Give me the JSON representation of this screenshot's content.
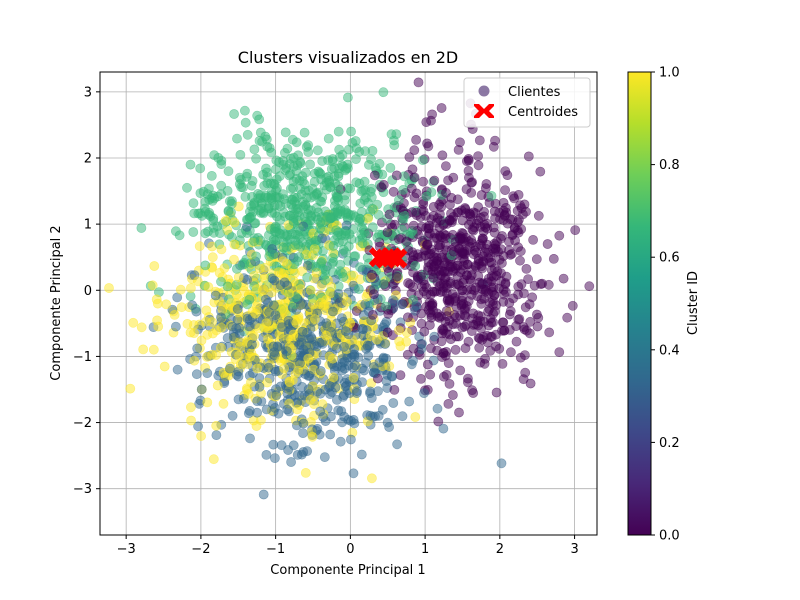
{
  "chart_data": {
    "type": "scatter",
    "title": "Clusters visualizados en 2D",
    "xlabel": "Componente Principal 1",
    "ylabel": "Componente Principal 2",
    "xlim": [
      -3.35,
      3.3
    ],
    "ylim": [
      -3.7,
      3.3
    ],
    "xticks": [
      -3,
      -2,
      -1,
      0,
      1,
      2,
      3
    ],
    "yticks": [
      -3,
      -2,
      -1,
      0,
      1,
      2,
      3
    ],
    "xtick_labels": [
      "−3",
      "−2",
      "−1",
      "0",
      "1",
      "2",
      "3"
    ],
    "ytick_labels": [
      "−3",
      "−2",
      "−1",
      "0",
      "1",
      "2",
      "3"
    ],
    "grid": true,
    "legend": {
      "position": "upper-right",
      "entries": [
        {
          "label": "Clientes",
          "marker": "circle",
          "color": "#5b3f7e"
        },
        {
          "label": "Centroides",
          "marker": "x",
          "color": "#ff0000"
        }
      ]
    },
    "colorbar": {
      "label": "Cluster ID",
      "range": [
        0.0,
        1.0
      ],
      "ticks": [
        0.0,
        0.2,
        0.4,
        0.6,
        0.8,
        1.0
      ],
      "tick_labels": [
        "0.0",
        "0.2",
        "0.4",
        "0.6",
        "0.8",
        "1.0"
      ],
      "colormap": [
        "#440154",
        "#482878",
        "#3e4989",
        "#31688e",
        "#26828e",
        "#1f9e89",
        "#35b779",
        "#6ece58",
        "#b5de2b",
        "#fde725"
      ]
    },
    "point_alpha": 0.5,
    "clusters": [
      {
        "id": 0.0,
        "color": "#440154",
        "center": [
          1.45,
          0.35
        ],
        "spread": [
          0.55,
          0.8
        ],
        "count": 700
      },
      {
        "id": 0.33,
        "color": "#31688e",
        "center": [
          -0.55,
          -0.9
        ],
        "spread": [
          0.75,
          0.7
        ],
        "count": 550
      },
      {
        "id": 0.67,
        "color": "#35b779",
        "center": [
          -0.55,
          1.1
        ],
        "spread": [
          0.75,
          0.65
        ],
        "count": 650
      },
      {
        "id": 1.0,
        "color": "#fde725",
        "center": [
          -0.95,
          -0.45
        ],
        "spread": [
          0.75,
          0.7
        ],
        "count": 520
      }
    ],
    "centroids": [
      {
        "x": 0.38,
        "y": 0.5
      },
      {
        "x": 0.47,
        "y": 0.48
      },
      {
        "x": 0.55,
        "y": 0.5
      },
      {
        "x": 0.63,
        "y": 0.48
      }
    ]
  }
}
